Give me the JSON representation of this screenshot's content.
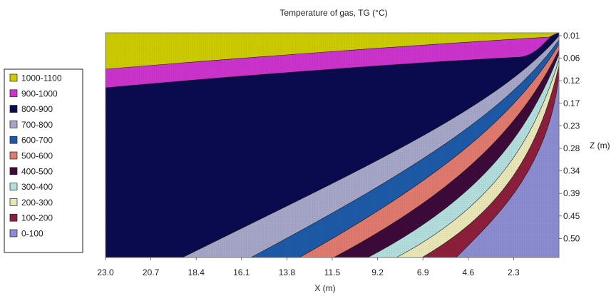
{
  "chart_data": {
    "type": "area",
    "subtype": "contour",
    "title": "Temperature of gas, TG (°C)",
    "xlabel": "X (m)",
    "ylabel": "Z (m)",
    "x_ticks": [
      "23.0",
      "20.7",
      "18.4",
      "16.1",
      "13.8",
      "11.5",
      "9.2",
      "6.9",
      "4.6",
      "2.3"
    ],
    "x_range": [
      23.0,
      0.0
    ],
    "z_ticks": [
      "0.01",
      "0.06",
      "0.12",
      "0.17",
      "0.23",
      "0.28",
      "0.34",
      "0.39",
      "0.45",
      "0.50"
    ],
    "z_axis_side": "right",
    "legend_position": "left",
    "grid": false,
    "series": [
      {
        "name": "1000-1100",
        "color": "#cccc00"
      },
      {
        "name": "900-1000",
        "color": "#cc33cc"
      },
      {
        "name": "800-900",
        "color": "#0a0a4e"
      },
      {
        "name": "700-800",
        "color": "#a6a6c8"
      },
      {
        "name": "600-700",
        "color": "#1c5aa8"
      },
      {
        "name": "500-600",
        "color": "#e07a6e"
      },
      {
        "name": "400-500",
        "color": "#3e0a3a"
      },
      {
        "name": "300-400",
        "color": "#b3dede"
      },
      {
        "name": "200-300",
        "color": "#e9e6b8"
      },
      {
        "name": "100-200",
        "color": "#8c1f3b"
      },
      {
        "name": "0-100",
        "color": "#8c8cd0"
      }
    ],
    "band_bottom_x_at_Z_0.50": [
      {
        "band": "800-900",
        "x": 19.0
      },
      {
        "band": "700-800",
        "x": 15.0
      },
      {
        "band": "600-700",
        "x": 12.5
      },
      {
        "band": "500-600",
        "x": 11.3
      },
      {
        "band": "400-500",
        "x": 9.8
      },
      {
        "band": "300-400",
        "x": 8.2
      },
      {
        "band": "200-300",
        "x": 7.0
      },
      {
        "band": "100-200",
        "x": 5.8
      },
      {
        "band": "0-100",
        "x": 0.0
      }
    ]
  }
}
